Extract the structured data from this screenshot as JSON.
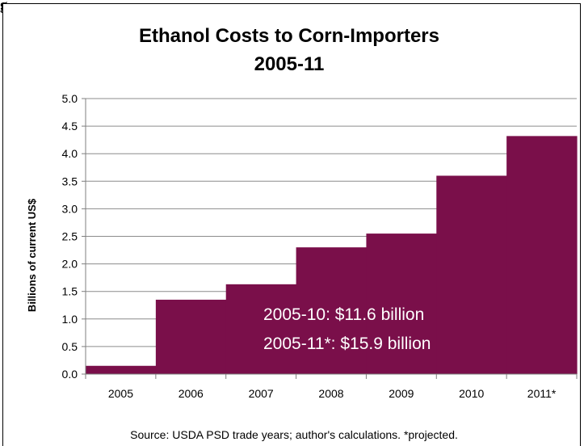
{
  "figure_label": "g",
  "chart_data": {
    "type": "bar",
    "title": "Ethanol Costs to Corn-Importers",
    "subtitle": "2005-11",
    "ylabel": "Billions of current US$",
    "xlabel": "",
    "categories": [
      "2005",
      "2006",
      "2007",
      "2008",
      "2009",
      "2010",
      "2011*"
    ],
    "values": [
      0.15,
      1.35,
      1.63,
      2.3,
      2.55,
      3.6,
      4.32
    ],
    "ylim": [
      0,
      5
    ],
    "yticks": [
      "0.0",
      "0.5",
      "1.0",
      "1.5",
      "2.0",
      "2.5",
      "3.0",
      "3.5",
      "4.0",
      "4.5",
      "5.0"
    ],
    "grid": true,
    "bar_color": "#7a0f4a",
    "annotations": [
      "2005-10:  $11.6 billion",
      "2005-11*: $15.9 billion"
    ],
    "source": "Source: USDA  PSD trade years; author's calculations. *projected."
  }
}
